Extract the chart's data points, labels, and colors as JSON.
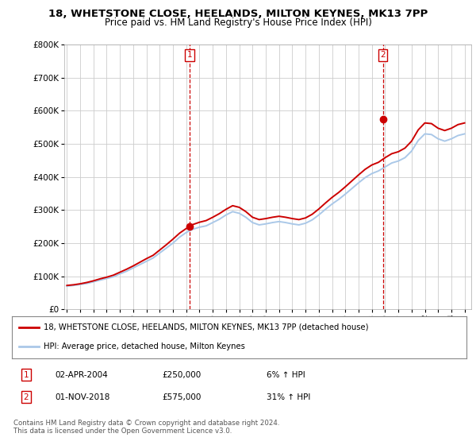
{
  "title_line1": "18, WHETSTONE CLOSE, HEELANDS, MILTON KEYNES, MK13 7PP",
  "title_line2": "Price paid vs. HM Land Registry's House Price Index (HPI)",
  "bg_color": "#ffffff",
  "plot_bg_color": "#ffffff",
  "grid_color": "#cccccc",
  "line1_color": "#cc0000",
  "line2_color": "#aac8e8",
  "sale1_date_num": 2004.25,
  "sale1_price": 250000,
  "sale2_date_num": 2018.83,
  "sale2_price": 575000,
  "legend_label1": "18, WHETSTONE CLOSE, HEELANDS, MILTON KEYNES, MK13 7PP (detached house)",
  "legend_label2": "HPI: Average price, detached house, Milton Keynes",
  "annotation1_label": "1",
  "annotation1_date": "02-APR-2004",
  "annotation1_price": "£250,000",
  "annotation1_hpi": "6% ↑ HPI",
  "annotation2_label": "2",
  "annotation2_date": "01-NOV-2018",
  "annotation2_price": "£575,000",
  "annotation2_hpi": "31% ↑ HPI",
  "copyright_text": "Contains HM Land Registry data © Crown copyright and database right 2024.\nThis data is licensed under the Open Government Licence v3.0.",
  "ylim_max": 800000,
  "ylim_min": 0,
  "xmin": 1994.8,
  "xmax": 2025.5,
  "years": [
    1995.0,
    1995.5,
    1996.0,
    1996.5,
    1997.0,
    1997.5,
    1998.0,
    1998.5,
    1999.0,
    1999.5,
    2000.0,
    2000.5,
    2001.0,
    2001.5,
    2002.0,
    2002.5,
    2003.0,
    2003.5,
    2004.0,
    2004.5,
    2005.0,
    2005.5,
    2006.0,
    2006.5,
    2007.0,
    2007.5,
    2008.0,
    2008.5,
    2009.0,
    2009.5,
    2010.0,
    2010.5,
    2011.0,
    2011.5,
    2012.0,
    2012.5,
    2013.0,
    2013.5,
    2014.0,
    2014.5,
    2015.0,
    2015.5,
    2016.0,
    2016.5,
    2017.0,
    2017.5,
    2018.0,
    2018.5,
    2019.0,
    2019.5,
    2020.0,
    2020.5,
    2021.0,
    2021.5,
    2022.0,
    2022.5,
    2023.0,
    2023.5,
    2024.0,
    2024.5,
    2025.0
  ],
  "hpi_values": [
    70000,
    72000,
    75000,
    78000,
    83000,
    88000,
    93000,
    98000,
    107000,
    115000,
    125000,
    135000,
    145000,
    155000,
    170000,
    185000,
    200000,
    218000,
    232000,
    242000,
    248000,
    252000,
    262000,
    272000,
    285000,
    295000,
    290000,
    278000,
    262000,
    255000,
    258000,
    262000,
    265000,
    262000,
    258000,
    255000,
    260000,
    270000,
    285000,
    302000,
    318000,
    332000,
    348000,
    365000,
    382000,
    398000,
    410000,
    418000,
    430000,
    442000,
    448000,
    458000,
    478000,
    510000,
    530000,
    528000,
    515000,
    508000,
    515000,
    525000,
    530000
  ],
  "red_values": [
    72000,
    74000,
    77000,
    81000,
    86000,
    92000,
    97000,
    103000,
    112000,
    121000,
    131000,
    142000,
    153000,
    163000,
    179000,
    195000,
    212000,
    230000,
    244000,
    256000,
    263000,
    268000,
    278000,
    289000,
    302000,
    313000,
    308000,
    295000,
    278000,
    271000,
    274000,
    278000,
    281000,
    278000,
    274000,
    271000,
    276000,
    287000,
    303000,
    321000,
    338000,
    353000,
    370000,
    388000,
    406000,
    423000,
    436000,
    444000,
    458000,
    470000,
    476000,
    487000,
    508000,
    542000,
    563000,
    561000,
    547000,
    540000,
    547000,
    558000,
    563000
  ]
}
